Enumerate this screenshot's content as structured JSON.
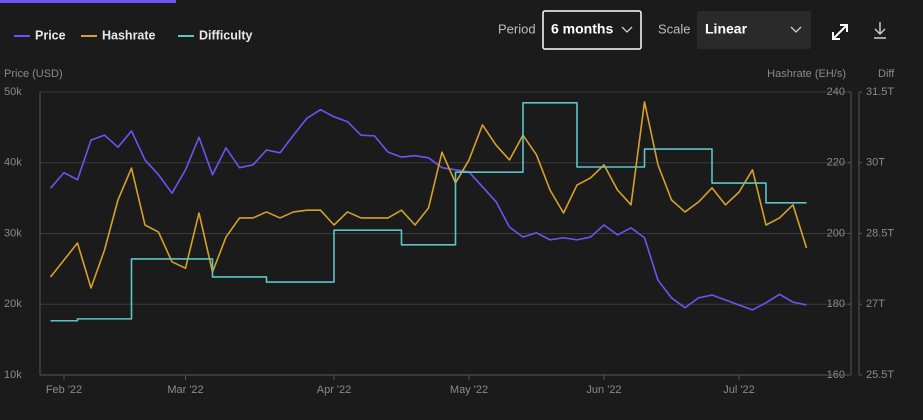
{
  "controls": {
    "period_label": "Period",
    "period": "6 months",
    "scale_label": "Scale",
    "scale": "Linear"
  },
  "chart_data": {
    "type": "line",
    "y_label": "Price (USD)",
    "y2_label": "Hashrate (EH/s)",
    "y3_label": "Diff",
    "categories": [
      null,
      "Feb '22",
      null,
      null,
      null,
      null,
      null,
      null,
      null,
      null,
      "Mar '22",
      null,
      null,
      null,
      null,
      null,
      null,
      null,
      null,
      null,
      null,
      "Apr '22",
      null,
      null,
      null,
      null,
      null,
      null,
      null,
      null,
      null,
      "May '22",
      null,
      null,
      null,
      null,
      null,
      null,
      null,
      null,
      null,
      "Jun '22",
      null,
      null,
      null,
      null,
      null,
      null,
      null,
      null,
      null,
      "Jul '22",
      null,
      null,
      null,
      null,
      null
    ],
    "series": [
      {
        "name": "Price",
        "color": "#6b55f2",
        "axis": "y",
        "values": [
          36400,
          38600,
          37600,
          43200,
          43900,
          42200,
          44500,
          40400,
          38300,
          35700,
          39000,
          43600,
          38300,
          42100,
          39300,
          39700,
          41800,
          41400,
          43900,
          46300,
          47500,
          46500,
          45800,
          43900,
          43800,
          41500,
          40800,
          41000,
          40700,
          39300,
          39000,
          38700,
          36600,
          34500,
          30900,
          29500,
          30100,
          29100,
          29400,
          29100,
          29500,
          31200,
          29800,
          30800,
          29400,
          23400,
          20900,
          19500,
          20900,
          21300,
          20600,
          19900,
          19200,
          20200,
          21400,
          20300,
          19900
        ]
      },
      {
        "name": "Hashrate",
        "color": "#d4a12a",
        "axis": "y2",
        "values": [
          187.7,
          192.5,
          197.3,
          184.6,
          195.3,
          209.5,
          218.5,
          202.4,
          200.4,
          192.0,
          190.2,
          205.8,
          189.1,
          199.0,
          204.4,
          204.4,
          206.1,
          204.4,
          206.1,
          206.6,
          206.6,
          202.4,
          206.1,
          204.4,
          204.4,
          204.4,
          206.6,
          202.4,
          207.2,
          223.0,
          214.3,
          220.8,
          230.7,
          225.0,
          220.8,
          227.8,
          222.2,
          212.3,
          205.8,
          213.7,
          215.7,
          219.4,
          212.3,
          208.1,
          237.2,
          219.4,
          209.5,
          206.1,
          208.9,
          212.9,
          208.1,
          211.7,
          218.0,
          202.4,
          204.4,
          208.1,
          195.9
        ]
      },
      {
        "name": "Difficulty",
        "color": "#5cc4c8",
        "axis": "y3",
        "step": "after",
        "values": [
          26.65,
          26.65,
          26.69,
          26.69,
          26.69,
          26.69,
          27.96,
          27.96,
          27.96,
          27.96,
          27.96,
          27.96,
          27.58,
          27.58,
          27.58,
          27.58,
          27.47,
          27.47,
          27.47,
          27.47,
          27.47,
          28.57,
          28.57,
          28.57,
          28.57,
          28.57,
          28.26,
          28.26,
          28.26,
          28.26,
          29.8,
          29.8,
          29.8,
          29.8,
          29.8,
          31.27,
          31.27,
          31.27,
          31.27,
          29.91,
          29.91,
          29.91,
          29.91,
          29.91,
          30.29,
          30.29,
          30.29,
          30.29,
          30.29,
          29.57,
          29.57,
          29.57,
          29.57,
          29.15,
          29.15,
          29.15,
          29.15
        ]
      }
    ],
    "ylim": [
      10000,
      50000
    ],
    "yticks": [
      {
        "value": 10000,
        "label": "10k"
      },
      {
        "value": 20000,
        "label": "20k"
      },
      {
        "value": 30000,
        "label": "30k"
      },
      {
        "value": 40000,
        "label": "40k"
      },
      {
        "value": 50000,
        "label": "50k"
      }
    ],
    "y2lim": [
      160,
      240
    ],
    "y2ticks": [
      160,
      180,
      200,
      220,
      240
    ],
    "y3lim": [
      25.5,
      31.5
    ],
    "y3ticks": [
      {
        "value": 25.5,
        "label": "25.5T"
      },
      {
        "value": 27,
        "label": "27T"
      },
      {
        "value": 28.5,
        "label": "28.5T"
      },
      {
        "value": 30,
        "label": "30T"
      },
      {
        "value": 31.5,
        "label": "31.5T"
      }
    ],
    "grid": true,
    "legend": "top-left"
  }
}
